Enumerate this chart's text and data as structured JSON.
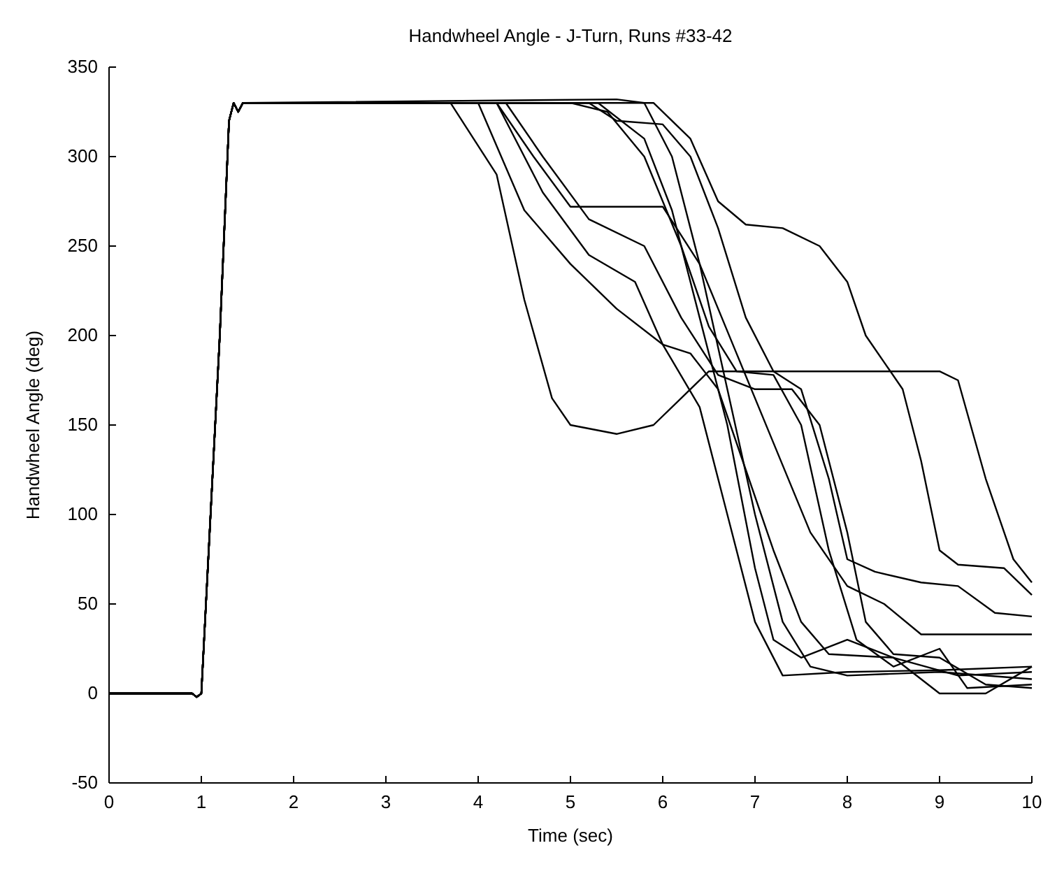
{
  "chart_data": {
    "type": "line",
    "title": "Handwheel Angle - J-Turn, Runs #33-42",
    "xlabel": "Time (sec)",
    "ylabel": "Handwheel Angle (deg)",
    "xlim": [
      0,
      10
    ],
    "xticks": [
      0,
      1,
      2,
      3,
      4,
      5,
      6,
      7,
      8,
      9,
      10
    ],
    "ylim": [
      -50,
      350
    ],
    "yticks": [
      -50,
      0,
      50,
      100,
      150,
      200,
      250,
      300,
      350
    ],
    "grid": false,
    "marker": "none",
    "line_style": "solid",
    "series": [
      {
        "color": "#000000",
        "x": [
          0,
          0.9,
          0.95,
          1.0,
          1.1,
          1.2,
          1.3,
          1.35,
          1.4,
          1.45,
          3.7,
          4.2,
          4.5,
          4.8,
          5.0,
          5.5,
          5.9,
          6.2,
          6.5,
          6.8,
          7.6,
          8.5,
          9.0,
          9.2,
          9.5,
          9.8,
          10
        ],
        "values": [
          0,
          0,
          -2,
          0,
          100,
          200,
          320,
          330,
          325,
          330,
          330,
          290,
          220,
          165,
          150,
          145,
          150,
          165,
          180,
          180,
          180,
          180,
          180,
          175,
          120,
          75,
          62
        ]
      },
      {
        "color": "#000000",
        "x": [
          0,
          0.9,
          0.95,
          1.0,
          1.1,
          1.2,
          1.3,
          1.35,
          1.4,
          1.45,
          5.9,
          6.3,
          6.6,
          6.9,
          7.3,
          7.7,
          8.0,
          8.2,
          8.4,
          8.6,
          8.8,
          9.0,
          9.2,
          9.7,
          10
        ],
        "values": [
          0,
          0,
          -2,
          0,
          100,
          200,
          320,
          330,
          325,
          330,
          330,
          310,
          275,
          262,
          260,
          250,
          230,
          200,
          185,
          170,
          130,
          80,
          72,
          70,
          55
        ]
      },
      {
        "color": "#000000",
        "x": [
          0,
          0.9,
          0.95,
          1.0,
          1.1,
          1.2,
          1.3,
          1.35,
          1.4,
          1.45,
          5.2,
          5.5,
          6.0,
          6.3,
          6.6,
          6.9,
          7.2,
          7.5,
          7.8,
          8.0,
          8.3,
          8.8,
          9.2,
          9.6,
          10
        ],
        "values": [
          0,
          0,
          -2,
          0,
          100,
          200,
          320,
          330,
          325,
          330,
          330,
          320,
          318,
          300,
          260,
          210,
          180,
          170,
          120,
          75,
          68,
          62,
          60,
          45,
          43
        ]
      },
      {
        "color": "#000000",
        "x": [
          0,
          0.9,
          0.95,
          1.0,
          1.1,
          1.2,
          1.3,
          1.35,
          1.4,
          1.45,
          4.2,
          4.6,
          5.0,
          6.0,
          6.4,
          6.8,
          7.2,
          7.6,
          8.0,
          8.4,
          8.8,
          10
        ],
        "values": [
          0,
          0,
          -2,
          0,
          100,
          200,
          320,
          330,
          325,
          330,
          330,
          300,
          272,
          272,
          240,
          190,
          140,
          90,
          60,
          50,
          33,
          33
        ]
      },
      {
        "color": "#000000",
        "x": [
          0,
          0.9,
          0.95,
          1.0,
          1.1,
          1.2,
          1.3,
          1.35,
          1.4,
          1.45,
          4.0,
          4.5,
          5.0,
          5.5,
          6.0,
          6.3,
          6.6,
          6.9,
          7.2,
          7.5,
          7.8,
          8.5,
          9.2,
          10
        ],
        "values": [
          0,
          0,
          -2,
          0,
          100,
          200,
          320,
          330,
          325,
          330,
          330,
          270,
          240,
          215,
          195,
          190,
          170,
          125,
          80,
          40,
          22,
          20,
          10,
          12
        ]
      },
      {
        "color": "#000000",
        "x": [
          0,
          0.9,
          0.95,
          1.0,
          1.1,
          1.2,
          1.3,
          1.35,
          1.4,
          1.45,
          4.2,
          4.7,
          5.2,
          5.7,
          6.0,
          6.4,
          6.7,
          7.0,
          7.3,
          8.0,
          9.0,
          10
        ],
        "values": [
          0,
          0,
          -2,
          0,
          100,
          200,
          320,
          330,
          325,
          330,
          330,
          280,
          245,
          230,
          195,
          160,
          100,
          40,
          10,
          12,
          13,
          15
        ]
      },
      {
        "color": "#000000",
        "x": [
          0,
          0.9,
          0.95,
          1.0,
          1.1,
          1.2,
          1.3,
          1.35,
          1.4,
          1.45,
          4.3,
          4.7,
          5.2,
          5.8,
          6.2,
          6.6,
          7.0,
          7.4,
          7.7,
          8.0,
          8.2,
          8.5,
          9.0,
          9.5,
          10
        ],
        "values": [
          0,
          0,
          -2,
          0,
          100,
          200,
          320,
          330,
          325,
          330,
          330,
          300,
          265,
          250,
          210,
          178,
          170,
          170,
          150,
          90,
          40,
          22,
          20,
          5,
          3
        ]
      },
      {
        "color": "#000000",
        "x": [
          0,
          0.9,
          0.95,
          1.0,
          1.1,
          1.2,
          1.3,
          1.35,
          1.4,
          1.45,
          5.0,
          5.4,
          5.8,
          6.2,
          6.5,
          6.8,
          7.2,
          7.5,
          7.8,
          8.1,
          8.5,
          9.0,
          9.3,
          10
        ],
        "values": [
          0,
          0,
          -2,
          0,
          100,
          200,
          320,
          330,
          325,
          330,
          330,
          325,
          300,
          250,
          205,
          180,
          178,
          150,
          80,
          30,
          15,
          25,
          3,
          5
        ]
      },
      {
        "color": "#000000",
        "x": [
          0,
          0.9,
          0.95,
          1.0,
          1.1,
          1.2,
          1.3,
          1.35,
          1.4,
          1.45,
          5.5,
          5.8,
          6.1,
          6.4,
          6.7,
          7.0,
          7.3,
          7.6,
          8.0,
          9.0,
          10
        ],
        "values": [
          0,
          0,
          -2,
          0,
          100,
          200,
          320,
          330,
          325,
          330,
          332,
          330,
          300,
          240,
          170,
          100,
          40,
          15,
          10,
          12,
          8
        ]
      },
      {
        "color": "#000000",
        "x": [
          0,
          0.9,
          0.95,
          1.0,
          1.1,
          1.2,
          1.3,
          1.35,
          1.4,
          1.45,
          5.3,
          5.8,
          6.1,
          6.4,
          6.7,
          7.0,
          7.2,
          7.5,
          8.0,
          8.5,
          9.0,
          9.5,
          10
        ],
        "values": [
          0,
          0,
          -2,
          0,
          100,
          200,
          320,
          330,
          325,
          330,
          330,
          310,
          270,
          210,
          150,
          70,
          30,
          20,
          30,
          20,
          0,
          0,
          15
        ]
      }
    ]
  }
}
